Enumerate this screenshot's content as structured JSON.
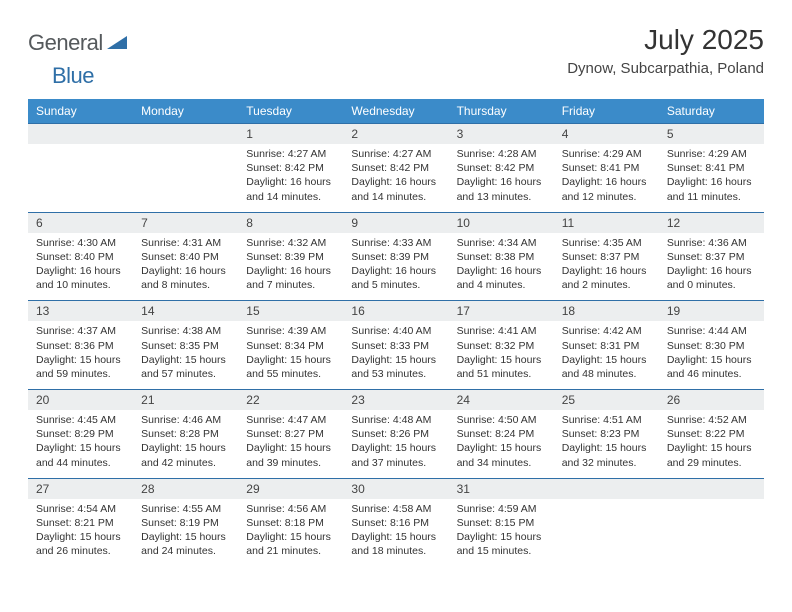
{
  "logo": {
    "word1": "General",
    "word2": "Blue"
  },
  "title": "July 2025",
  "location": "Dynow, Subcarpathia, Poland",
  "colors": {
    "header_bg": "#3b8bc9",
    "header_text": "#ffffff",
    "daynum_bg": "#eceeef",
    "row_border": "#2f6fa7",
    "text": "#333333",
    "logo_gray": "#55595c",
    "logo_blue": "#2f6fa7"
  },
  "dayNames": [
    "Sunday",
    "Monday",
    "Tuesday",
    "Wednesday",
    "Thursday",
    "Friday",
    "Saturday"
  ],
  "weeks": [
    [
      {
        "num": "",
        "sunrise": "",
        "sunset": "",
        "daylight": ""
      },
      {
        "num": "",
        "sunrise": "",
        "sunset": "",
        "daylight": ""
      },
      {
        "num": "1",
        "sunrise": "Sunrise: 4:27 AM",
        "sunset": "Sunset: 8:42 PM",
        "daylight": "Daylight: 16 hours and 14 minutes."
      },
      {
        "num": "2",
        "sunrise": "Sunrise: 4:27 AM",
        "sunset": "Sunset: 8:42 PM",
        "daylight": "Daylight: 16 hours and 14 minutes."
      },
      {
        "num": "3",
        "sunrise": "Sunrise: 4:28 AM",
        "sunset": "Sunset: 8:42 PM",
        "daylight": "Daylight: 16 hours and 13 minutes."
      },
      {
        "num": "4",
        "sunrise": "Sunrise: 4:29 AM",
        "sunset": "Sunset: 8:41 PM",
        "daylight": "Daylight: 16 hours and 12 minutes."
      },
      {
        "num": "5",
        "sunrise": "Sunrise: 4:29 AM",
        "sunset": "Sunset: 8:41 PM",
        "daylight": "Daylight: 16 hours and 11 minutes."
      }
    ],
    [
      {
        "num": "6",
        "sunrise": "Sunrise: 4:30 AM",
        "sunset": "Sunset: 8:40 PM",
        "daylight": "Daylight: 16 hours and 10 minutes."
      },
      {
        "num": "7",
        "sunrise": "Sunrise: 4:31 AM",
        "sunset": "Sunset: 8:40 PM",
        "daylight": "Daylight: 16 hours and 8 minutes."
      },
      {
        "num": "8",
        "sunrise": "Sunrise: 4:32 AM",
        "sunset": "Sunset: 8:39 PM",
        "daylight": "Daylight: 16 hours and 7 minutes."
      },
      {
        "num": "9",
        "sunrise": "Sunrise: 4:33 AM",
        "sunset": "Sunset: 8:39 PM",
        "daylight": "Daylight: 16 hours and 5 minutes."
      },
      {
        "num": "10",
        "sunrise": "Sunrise: 4:34 AM",
        "sunset": "Sunset: 8:38 PM",
        "daylight": "Daylight: 16 hours and 4 minutes."
      },
      {
        "num": "11",
        "sunrise": "Sunrise: 4:35 AM",
        "sunset": "Sunset: 8:37 PM",
        "daylight": "Daylight: 16 hours and 2 minutes."
      },
      {
        "num": "12",
        "sunrise": "Sunrise: 4:36 AM",
        "sunset": "Sunset: 8:37 PM",
        "daylight": "Daylight: 16 hours and 0 minutes."
      }
    ],
    [
      {
        "num": "13",
        "sunrise": "Sunrise: 4:37 AM",
        "sunset": "Sunset: 8:36 PM",
        "daylight": "Daylight: 15 hours and 59 minutes."
      },
      {
        "num": "14",
        "sunrise": "Sunrise: 4:38 AM",
        "sunset": "Sunset: 8:35 PM",
        "daylight": "Daylight: 15 hours and 57 minutes."
      },
      {
        "num": "15",
        "sunrise": "Sunrise: 4:39 AM",
        "sunset": "Sunset: 8:34 PM",
        "daylight": "Daylight: 15 hours and 55 minutes."
      },
      {
        "num": "16",
        "sunrise": "Sunrise: 4:40 AM",
        "sunset": "Sunset: 8:33 PM",
        "daylight": "Daylight: 15 hours and 53 minutes."
      },
      {
        "num": "17",
        "sunrise": "Sunrise: 4:41 AM",
        "sunset": "Sunset: 8:32 PM",
        "daylight": "Daylight: 15 hours and 51 minutes."
      },
      {
        "num": "18",
        "sunrise": "Sunrise: 4:42 AM",
        "sunset": "Sunset: 8:31 PM",
        "daylight": "Daylight: 15 hours and 48 minutes."
      },
      {
        "num": "19",
        "sunrise": "Sunrise: 4:44 AM",
        "sunset": "Sunset: 8:30 PM",
        "daylight": "Daylight: 15 hours and 46 minutes."
      }
    ],
    [
      {
        "num": "20",
        "sunrise": "Sunrise: 4:45 AM",
        "sunset": "Sunset: 8:29 PM",
        "daylight": "Daylight: 15 hours and 44 minutes."
      },
      {
        "num": "21",
        "sunrise": "Sunrise: 4:46 AM",
        "sunset": "Sunset: 8:28 PM",
        "daylight": "Daylight: 15 hours and 42 minutes."
      },
      {
        "num": "22",
        "sunrise": "Sunrise: 4:47 AM",
        "sunset": "Sunset: 8:27 PM",
        "daylight": "Daylight: 15 hours and 39 minutes."
      },
      {
        "num": "23",
        "sunrise": "Sunrise: 4:48 AM",
        "sunset": "Sunset: 8:26 PM",
        "daylight": "Daylight: 15 hours and 37 minutes."
      },
      {
        "num": "24",
        "sunrise": "Sunrise: 4:50 AM",
        "sunset": "Sunset: 8:24 PM",
        "daylight": "Daylight: 15 hours and 34 minutes."
      },
      {
        "num": "25",
        "sunrise": "Sunrise: 4:51 AM",
        "sunset": "Sunset: 8:23 PM",
        "daylight": "Daylight: 15 hours and 32 minutes."
      },
      {
        "num": "26",
        "sunrise": "Sunrise: 4:52 AM",
        "sunset": "Sunset: 8:22 PM",
        "daylight": "Daylight: 15 hours and 29 minutes."
      }
    ],
    [
      {
        "num": "27",
        "sunrise": "Sunrise: 4:54 AM",
        "sunset": "Sunset: 8:21 PM",
        "daylight": "Daylight: 15 hours and 26 minutes."
      },
      {
        "num": "28",
        "sunrise": "Sunrise: 4:55 AM",
        "sunset": "Sunset: 8:19 PM",
        "daylight": "Daylight: 15 hours and 24 minutes."
      },
      {
        "num": "29",
        "sunrise": "Sunrise: 4:56 AM",
        "sunset": "Sunset: 8:18 PM",
        "daylight": "Daylight: 15 hours and 21 minutes."
      },
      {
        "num": "30",
        "sunrise": "Sunrise: 4:58 AM",
        "sunset": "Sunset: 8:16 PM",
        "daylight": "Daylight: 15 hours and 18 minutes."
      },
      {
        "num": "31",
        "sunrise": "Sunrise: 4:59 AM",
        "sunset": "Sunset: 8:15 PM",
        "daylight": "Daylight: 15 hours and 15 minutes."
      },
      {
        "num": "",
        "sunrise": "",
        "sunset": "",
        "daylight": ""
      },
      {
        "num": "",
        "sunrise": "",
        "sunset": "",
        "daylight": ""
      }
    ]
  ]
}
